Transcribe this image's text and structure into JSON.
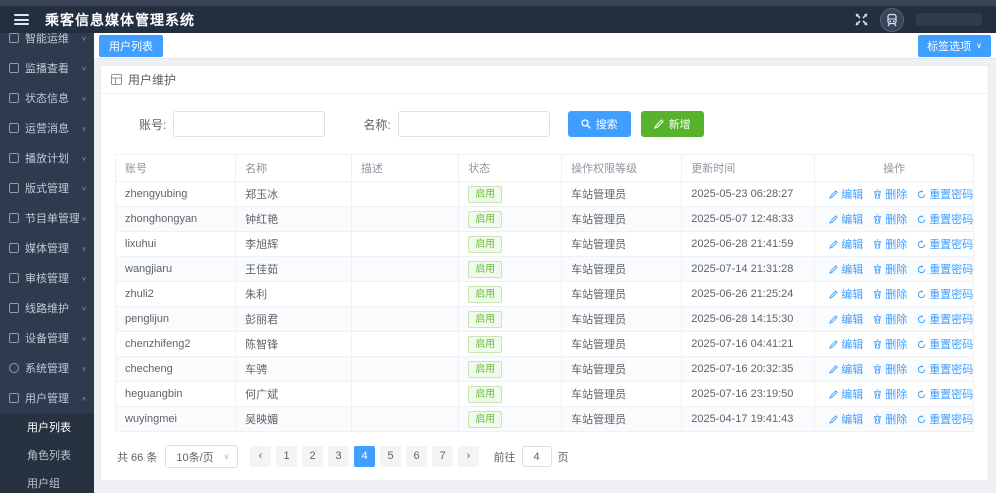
{
  "header": {
    "title": "乘客信息媒体管理系统"
  },
  "tabbar": {
    "active_tab": "用户列表",
    "tag_options_label": "标签选项",
    "chevron": "∨"
  },
  "sidebar": {
    "chevron_down": "∨",
    "chevron_up": "∧",
    "items": [
      {
        "key": "smart-ops",
        "label": "智能运维",
        "icon": "ops-icon"
      },
      {
        "key": "monitor-view",
        "label": "监播查看",
        "icon": "monitor-icon"
      },
      {
        "key": "status-info",
        "label": "状态信息",
        "icon": "status-icon"
      },
      {
        "key": "operation-message",
        "label": "运营消息",
        "icon": "message-icon"
      },
      {
        "key": "play-plan",
        "label": "播放计划",
        "icon": "schedule-icon"
      },
      {
        "key": "layout-mgmt",
        "label": "版式管理",
        "icon": "layout-icon"
      },
      {
        "key": "playlist-mgmt",
        "label": "节目单管理",
        "icon": "playlist-icon"
      },
      {
        "key": "media-mgmt",
        "label": "媒体管理",
        "icon": "media-icon"
      },
      {
        "key": "audit-mgmt",
        "label": "审核管理",
        "icon": "audit-icon"
      },
      {
        "key": "line-maintenance",
        "label": "线路维护",
        "icon": "route-icon"
      },
      {
        "key": "device-mgmt",
        "label": "设备管理",
        "icon": "device-icon"
      },
      {
        "key": "system-mgmt",
        "label": "系统管理",
        "icon": "gear-icon"
      },
      {
        "key": "user-mgmt",
        "label": "用户管理",
        "icon": "user-icon",
        "expanded": true
      }
    ],
    "submenu": [
      {
        "key": "user-list",
        "label": "用户列表",
        "active": true
      },
      {
        "key": "role-list",
        "label": "角色列表",
        "active": false
      },
      {
        "key": "user-group",
        "label": "用户组",
        "active": false
      }
    ]
  },
  "panel": {
    "title": "用户维护"
  },
  "search": {
    "account_label": "账号:",
    "name_label": "名称:",
    "search_button": "搜索",
    "add_button": "新增"
  },
  "table": {
    "headers": [
      "账号",
      "名称",
      "描述",
      "状态",
      "操作权限等级",
      "更新时间",
      "操作"
    ],
    "actions": {
      "edit": "编辑",
      "delete": "删除",
      "reset": "重置密码"
    },
    "rows": [
      {
        "account": "zhengyubing",
        "name": "郑玉冰",
        "desc": "",
        "status": "启用",
        "role": "车站管理员",
        "updated": "2025-05-23 06:28:27"
      },
      {
        "account": "zhonghongyan",
        "name": "钟红艳",
        "desc": "",
        "status": "启用",
        "role": "车站管理员",
        "updated": "2025-05-07 12:48:33"
      },
      {
        "account": "lixuhui",
        "name": "李旭辉",
        "desc": "",
        "status": "启用",
        "role": "车站管理员",
        "updated": "2025-06-28 21:41:59"
      },
      {
        "account": "wangjiaru",
        "name": "王佳茹",
        "desc": "",
        "status": "启用",
        "role": "车站管理员",
        "updated": "2025-07-14 21:31:28"
      },
      {
        "account": "zhuli2",
        "name": "朱利",
        "desc": "",
        "status": "启用",
        "role": "车站管理员",
        "updated": "2025-06-26 21:25:24"
      },
      {
        "account": "penglijun",
        "name": "彭丽君",
        "desc": "",
        "status": "启用",
        "role": "车站管理员",
        "updated": "2025-06-28 14:15:30"
      },
      {
        "account": "chenzhifeng2",
        "name": "陈智锋",
        "desc": "",
        "status": "启用",
        "role": "车站管理员",
        "updated": "2025-07-16 04:41:21"
      },
      {
        "account": "checheng",
        "name": "车骋",
        "desc": "",
        "status": "启用",
        "role": "车站管理员",
        "updated": "2025-07-16 20:32:35"
      },
      {
        "account": "heguangbin",
        "name": "何广斌",
        "desc": "",
        "status": "启用",
        "role": "车站管理员",
        "updated": "2025-07-16 23:19:50"
      },
      {
        "account": "wuyingmei",
        "name": "吴映媚",
        "desc": "",
        "status": "启用",
        "role": "车站管理员",
        "updated": "2025-04-17 19:41:43"
      }
    ]
  },
  "pagination": {
    "total_text": "共 66 条",
    "page_size": "10条/页",
    "chevron": "∨",
    "prev": "‹",
    "next": "›",
    "pages": [
      "1",
      "2",
      "3",
      "4",
      "5",
      "6",
      "7"
    ],
    "active_page": "4",
    "goto_label": "前往",
    "goto_value": "4",
    "page_label": "页"
  },
  "colors": {
    "primary": "#409eff",
    "success_button": "#56b32b",
    "badge_green": "#67c23a",
    "header_bg": "#232e3f",
    "sidebar_bg": "#2e3a4e",
    "submenu_bg": "#273240"
  }
}
